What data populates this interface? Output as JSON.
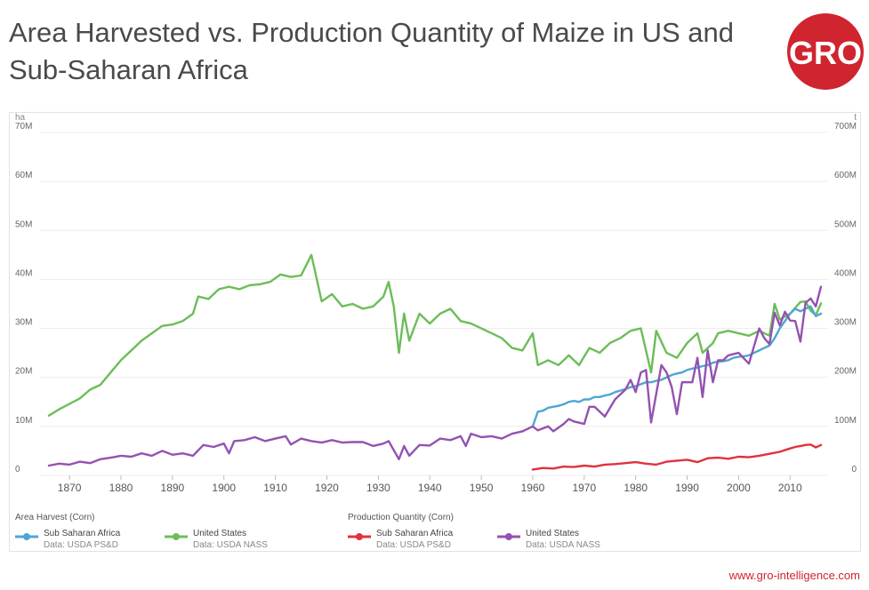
{
  "title": "Area Harvested vs. Production Quantity of Maize in US and Sub-Saharan Africa",
  "logo_text": "GRO",
  "footer_url": "www.gro-intelligence.com",
  "colors": {
    "ssa_area": "#4ea6d2",
    "us_area": "#6cbd58",
    "ssa_prod": "#e0323c",
    "us_prod": "#9452b0",
    "brand": "#d0242f"
  },
  "legend": {
    "area_title": "Area Harvest (Corn)",
    "prod_title": "Production Quantity (Corn)",
    "ssa_area": {
      "name": "Sub Saharan Africa",
      "source": "Data: USDA PS&D"
    },
    "us_area": {
      "name": "United States",
      "source": "Data: USDA NASS"
    },
    "ssa_prod": {
      "name": "Sub Saharan Africa",
      "source": "Data: USDA PS&D"
    },
    "us_prod": {
      "name": "United States",
      "source": "Data: USDA NASS"
    }
  },
  "chart_data": {
    "type": "line",
    "title": "Area Harvested vs. Production Quantity of Maize in US and Sub-Saharan Africa",
    "xlim": [
      1866,
      2016
    ],
    "x_ticks": [
      1870,
      1880,
      1890,
      1900,
      1910,
      1920,
      1930,
      1940,
      1950,
      1960,
      1970,
      1980,
      1990,
      2000,
      2010
    ],
    "left_axis": {
      "unit": "ha",
      "range": [
        0,
        70000000
      ],
      "ticks": [
        "0",
        "10M",
        "20M",
        "30M",
        "40M",
        "50M",
        "60M",
        "70M"
      ]
    },
    "right_axis": {
      "unit": "t",
      "range": [
        0,
        700000000
      ],
      "ticks": [
        "0",
        "100M",
        "200M",
        "300M",
        "400M",
        "500M",
        "600M",
        "700M"
      ]
    },
    "series": [
      {
        "key": "us_area",
        "name": "United States (Area Harvest)",
        "axis": "left",
        "unit": "M ha",
        "points": [
          [
            1866,
            12.2
          ],
          [
            1868,
            13.5
          ],
          [
            1870,
            14.6
          ],
          [
            1872,
            15.7
          ],
          [
            1874,
            17.5
          ],
          [
            1876,
            18.5
          ],
          [
            1878,
            21.0
          ],
          [
            1880,
            23.5
          ],
          [
            1882,
            25.5
          ],
          [
            1884,
            27.5
          ],
          [
            1886,
            29.0
          ],
          [
            1888,
            30.5
          ],
          [
            1890,
            30.8
          ],
          [
            1892,
            31.5
          ],
          [
            1894,
            33.0
          ],
          [
            1895,
            36.5
          ],
          [
            1897,
            36.0
          ],
          [
            1899,
            38.0
          ],
          [
            1901,
            38.5
          ],
          [
            1903,
            38.0
          ],
          [
            1905,
            38.8
          ],
          [
            1907,
            39.0
          ],
          [
            1909,
            39.5
          ],
          [
            1911,
            41.0
          ],
          [
            1913,
            40.5
          ],
          [
            1915,
            40.8
          ],
          [
            1917,
            45.0
          ],
          [
            1919,
            35.5
          ],
          [
            1921,
            37.0
          ],
          [
            1923,
            34.5
          ],
          [
            1925,
            35.0
          ],
          [
            1927,
            34.0
          ],
          [
            1929,
            34.5
          ],
          [
            1931,
            36.5
          ],
          [
            1932,
            39.5
          ],
          [
            1933,
            34.5
          ],
          [
            1934,
            25.0
          ],
          [
            1935,
            33.0
          ],
          [
            1936,
            27.5
          ],
          [
            1938,
            33.0
          ],
          [
            1940,
            31.0
          ],
          [
            1942,
            33.0
          ],
          [
            1944,
            34.0
          ],
          [
            1946,
            31.5
          ],
          [
            1948,
            31.0
          ],
          [
            1950,
            30.0
          ],
          [
            1952,
            29.0
          ],
          [
            1954,
            28.0
          ],
          [
            1956,
            26.0
          ],
          [
            1958,
            25.5
          ],
          [
            1960,
            29.0
          ],
          [
            1961,
            22.5
          ],
          [
            1963,
            23.5
          ],
          [
            1965,
            22.5
          ],
          [
            1967,
            24.5
          ],
          [
            1969,
            22.5
          ],
          [
            1971,
            26.0
          ],
          [
            1973,
            25.0
          ],
          [
            1975,
            27.0
          ],
          [
            1977,
            28.0
          ],
          [
            1979,
            29.5
          ],
          [
            1981,
            30.0
          ],
          [
            1983,
            21.0
          ],
          [
            1984,
            29.5
          ],
          [
            1986,
            25.0
          ],
          [
            1988,
            24.0
          ],
          [
            1990,
            27.0
          ],
          [
            1992,
            29.0
          ],
          [
            1993,
            25.0
          ],
          [
            1995,
            27.0
          ],
          [
            1996,
            29.0
          ],
          [
            1998,
            29.5
          ],
          [
            2000,
            29.0
          ],
          [
            2002,
            28.5
          ],
          [
            2004,
            29.5
          ],
          [
            2006,
            28.5
          ],
          [
            2007,
            35.0
          ],
          [
            2008,
            31.8
          ],
          [
            2010,
            33.0
          ],
          [
            2012,
            35.4
          ],
          [
            2013,
            35.5
          ],
          [
            2014,
            33.6
          ],
          [
            2015,
            32.7
          ],
          [
            2016,
            35.1
          ]
        ]
      },
      {
        "key": "ssa_area",
        "name": "Sub Saharan Africa (Area Harvest)",
        "axis": "left",
        "unit": "M ha",
        "points": [
          [
            1960,
            10.0
          ],
          [
            1961,
            13.0
          ],
          [
            1962,
            13.2
          ],
          [
            1963,
            13.8
          ],
          [
            1964,
            14.0
          ],
          [
            1965,
            14.2
          ],
          [
            1966,
            14.5
          ],
          [
            1967,
            15.0
          ],
          [
            1968,
            15.2
          ],
          [
            1969,
            15.0
          ],
          [
            1970,
            15.5
          ],
          [
            1971,
            15.5
          ],
          [
            1972,
            16.0
          ],
          [
            1973,
            16.0
          ],
          [
            1974,
            16.3
          ],
          [
            1975,
            16.5
          ],
          [
            1976,
            17.0
          ],
          [
            1977,
            17.3
          ],
          [
            1978,
            17.6
          ],
          [
            1979,
            18.0
          ],
          [
            1980,
            18.2
          ],
          [
            1981,
            18.6
          ],
          [
            1982,
            19.0
          ],
          [
            1983,
            19.0
          ],
          [
            1984,
            19.3
          ],
          [
            1985,
            19.5
          ],
          [
            1986,
            20.0
          ],
          [
            1987,
            20.5
          ],
          [
            1988,
            20.8
          ],
          [
            1989,
            21.0
          ],
          [
            1990,
            21.5
          ],
          [
            1991,
            21.8
          ],
          [
            1992,
            22.0
          ],
          [
            1993,
            22.3
          ],
          [
            1994,
            22.5
          ],
          [
            1995,
            23.0
          ],
          [
            1996,
            23.2
          ],
          [
            1997,
            23.3
          ],
          [
            1998,
            23.5
          ],
          [
            1999,
            24.0
          ],
          [
            2000,
            24.2
          ],
          [
            2001,
            24.3
          ],
          [
            2002,
            24.5
          ],
          [
            2003,
            25.0
          ],
          [
            2004,
            25.5
          ],
          [
            2005,
            26.0
          ],
          [
            2006,
            26.5
          ],
          [
            2007,
            28.0
          ],
          [
            2008,
            30.0
          ],
          [
            2009,
            31.5
          ],
          [
            2010,
            33.0
          ],
          [
            2011,
            34.0
          ],
          [
            2012,
            33.5
          ],
          [
            2013,
            34.0
          ],
          [
            2014,
            34.5
          ],
          [
            2015,
            32.5
          ],
          [
            2016,
            33.0
          ]
        ]
      },
      {
        "key": "us_prod",
        "name": "United States (Production Quantity)",
        "axis": "right",
        "unit": "M t",
        "points": [
          [
            1866,
            20
          ],
          [
            1868,
            24
          ],
          [
            1870,
            22
          ],
          [
            1872,
            28
          ],
          [
            1874,
            25
          ],
          [
            1876,
            33
          ],
          [
            1878,
            36
          ],
          [
            1880,
            40
          ],
          [
            1882,
            38
          ],
          [
            1884,
            45
          ],
          [
            1886,
            40
          ],
          [
            1888,
            50
          ],
          [
            1890,
            42
          ],
          [
            1892,
            45
          ],
          [
            1894,
            40
          ],
          [
            1896,
            62
          ],
          [
            1898,
            58
          ],
          [
            1900,
            65
          ],
          [
            1901,
            45
          ],
          [
            1902,
            70
          ],
          [
            1904,
            72
          ],
          [
            1906,
            78
          ],
          [
            1908,
            70
          ],
          [
            1910,
            75
          ],
          [
            1912,
            80
          ],
          [
            1913,
            63
          ],
          [
            1915,
            75
          ],
          [
            1917,
            70
          ],
          [
            1919,
            67
          ],
          [
            1921,
            72
          ],
          [
            1923,
            67
          ],
          [
            1925,
            68
          ],
          [
            1927,
            68
          ],
          [
            1929,
            60
          ],
          [
            1931,
            65
          ],
          [
            1932,
            70
          ],
          [
            1934,
            33
          ],
          [
            1935,
            60
          ],
          [
            1936,
            40
          ],
          [
            1938,
            62
          ],
          [
            1940,
            61
          ],
          [
            1942,
            75
          ],
          [
            1944,
            72
          ],
          [
            1946,
            80
          ],
          [
            1947,
            60
          ],
          [
            1948,
            85
          ],
          [
            1950,
            78
          ],
          [
            1952,
            80
          ],
          [
            1954,
            75
          ],
          [
            1956,
            85
          ],
          [
            1958,
            90
          ],
          [
            1960,
            100
          ],
          [
            1961,
            92
          ],
          [
            1963,
            100
          ],
          [
            1964,
            90
          ],
          [
            1966,
            105
          ],
          [
            1967,
            115
          ],
          [
            1968,
            110
          ],
          [
            1970,
            105
          ],
          [
            1971,
            140
          ],
          [
            1972,
            140
          ],
          [
            1974,
            120
          ],
          [
            1976,
            155
          ],
          [
            1978,
            175
          ],
          [
            1979,
            195
          ],
          [
            1980,
            170
          ],
          [
            1981,
            210
          ],
          [
            1982,
            215
          ],
          [
            1983,
            108
          ],
          [
            1985,
            225
          ],
          [
            1986,
            210
          ],
          [
            1987,
            180
          ],
          [
            1988,
            125
          ],
          [
            1989,
            190
          ],
          [
            1991,
            190
          ],
          [
            1992,
            240
          ],
          [
            1993,
            160
          ],
          [
            1994,
            255
          ],
          [
            1995,
            190
          ],
          [
            1996,
            235
          ],
          [
            1997,
            235
          ],
          [
            1998,
            245
          ],
          [
            2000,
            250
          ],
          [
            2002,
            228
          ],
          [
            2004,
            300
          ],
          [
            2005,
            280
          ],
          [
            2006,
            268
          ],
          [
            2007,
            332
          ],
          [
            2008,
            306
          ],
          [
            2009,
            334
          ],
          [
            2010,
            316
          ],
          [
            2011,
            315
          ],
          [
            2012,
            273
          ],
          [
            2013,
            352
          ],
          [
            2014,
            361
          ],
          [
            2015,
            345
          ],
          [
            2016,
            385
          ]
        ]
      },
      {
        "key": "ssa_prod",
        "name": "Sub Saharan Africa (Production Quantity)",
        "axis": "right",
        "unit": "M t",
        "points": [
          [
            1960,
            12
          ],
          [
            1962,
            15
          ],
          [
            1964,
            14
          ],
          [
            1966,
            18
          ],
          [
            1968,
            17
          ],
          [
            1970,
            20
          ],
          [
            1972,
            18
          ],
          [
            1974,
            22
          ],
          [
            1976,
            23
          ],
          [
            1978,
            25
          ],
          [
            1980,
            27
          ],
          [
            1982,
            24
          ],
          [
            1984,
            22
          ],
          [
            1986,
            28
          ],
          [
            1988,
            30
          ],
          [
            1990,
            32
          ],
          [
            1992,
            27
          ],
          [
            1994,
            35
          ],
          [
            1996,
            36
          ],
          [
            1998,
            34
          ],
          [
            2000,
            38
          ],
          [
            2002,
            37
          ],
          [
            2004,
            40
          ],
          [
            2006,
            44
          ],
          [
            2008,
            48
          ],
          [
            2010,
            55
          ],
          [
            2011,
            58
          ],
          [
            2012,
            60
          ],
          [
            2013,
            62
          ],
          [
            2014,
            63
          ],
          [
            2015,
            57
          ],
          [
            2016,
            62
          ]
        ]
      }
    ]
  }
}
